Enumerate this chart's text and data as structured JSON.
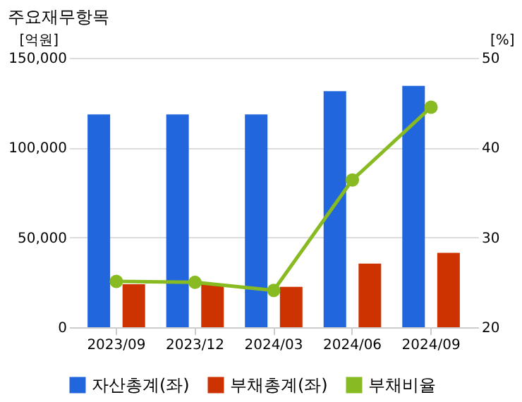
{
  "chart_data": {
    "type": "bar",
    "title": "주요재무항목",
    "ylabel": "[억원]",
    "y2label": "[%]",
    "categories": [
      "2023/09",
      "2023/12",
      "2024/03",
      "2024/06",
      "2024/09"
    ],
    "series": [
      {
        "name": "자산총계(좌)",
        "color": "#2266dd",
        "values": [
          118500,
          118500,
          118500,
          131400,
          134400
        ]
      },
      {
        "name": "부채총계(좌)",
        "color": "#cc3300",
        "values": [
          24000,
          24000,
          22500,
          35400,
          41400
        ]
      },
      {
        "name": "부채비율",
        "color": "#88bb22",
        "type": "line",
        "axis": "y2",
        "marker": "circle",
        "values": [
          25.1,
          25.0,
          24.1,
          36.4,
          44.5
        ]
      }
    ],
    "ylim": [
      0,
      150000
    ],
    "yticks": [
      0,
      {
        "value": 50000,
        "label": "50,000"
      },
      {
        "value": 100000,
        "label": "100,000"
      },
      {
        "value": 150000,
        "label": "150,000"
      }
    ],
    "y2lim": [
      20,
      50
    ],
    "y2ticks": [
      20,
      30,
      40,
      50
    ],
    "grid": "y",
    "legend": "bottom"
  }
}
